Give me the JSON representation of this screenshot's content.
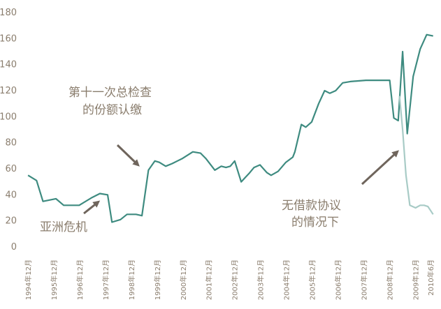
{
  "chart_data": {
    "type": "line",
    "title": "",
    "xlabel": "",
    "ylabel": "",
    "ylim": [
      0,
      180
    ],
    "yticks": [
      0,
      20,
      40,
      60,
      80,
      100,
      120,
      140,
      160,
      180
    ],
    "xlim": [
      1994.917,
      2010.5
    ],
    "x_tick_labels": [
      {
        "x": 1994.917,
        "label": "1994年12月"
      },
      {
        "x": 1995.917,
        "label": "1995年12月"
      },
      {
        "x": 1996.917,
        "label": "1996年12月"
      },
      {
        "x": 1997.917,
        "label": "1997年12月"
      },
      {
        "x": 1998.917,
        "label": "1998年12月"
      },
      {
        "x": 1999.917,
        "label": "1999年12月"
      },
      {
        "x": 2000.917,
        "label": "2000年12月"
      },
      {
        "x": 2001.917,
        "label": "2001年12月"
      },
      {
        "x": 2002.917,
        "label": "2002年12月"
      },
      {
        "x": 2003.917,
        "label": "2003年12月"
      },
      {
        "x": 2004.917,
        "label": "2004年12月"
      },
      {
        "x": 2005.917,
        "label": "2005年12月"
      },
      {
        "x": 2006.917,
        "label": "2006年12月"
      },
      {
        "x": 2007.917,
        "label": "2007年12月"
      },
      {
        "x": 2008.917,
        "label": "2008年12月"
      },
      {
        "x": 2009.917,
        "label": "2009年12月"
      },
      {
        "x": 2010.5,
        "label": "2010年6月"
      }
    ],
    "grid": false,
    "legend": "none",
    "series": [
      {
        "color": "#3e8b80",
        "points": [
          [
            1994.92,
            55
          ],
          [
            1995.25,
            51
          ],
          [
            1995.5,
            35
          ],
          [
            1996.0,
            37
          ],
          [
            1996.3,
            32
          ],
          [
            1996.9,
            32
          ],
          [
            1997.4,
            38
          ],
          [
            1997.7,
            41
          ],
          [
            1998.0,
            40
          ],
          [
            1998.17,
            19
          ],
          [
            1998.5,
            21
          ],
          [
            1998.75,
            25
          ],
          [
            1999.1,
            25
          ],
          [
            1999.33,
            24
          ],
          [
            1999.58,
            59
          ],
          [
            1999.83,
            66
          ],
          [
            2000.0,
            65
          ],
          [
            2000.25,
            62
          ],
          [
            2000.5,
            64
          ],
          [
            2000.9,
            68
          ],
          [
            2001.3,
            73
          ],
          [
            2001.6,
            72
          ],
          [
            2001.8,
            68
          ],
          [
            2002.15,
            59
          ],
          [
            2002.4,
            62
          ],
          [
            2002.58,
            61
          ],
          [
            2002.75,
            62
          ],
          [
            2002.92,
            66
          ],
          [
            2003.17,
            50
          ],
          [
            2003.5,
            57
          ],
          [
            2003.67,
            61
          ],
          [
            2003.9,
            63
          ],
          [
            2004.17,
            57
          ],
          [
            2004.33,
            55
          ],
          [
            2004.6,
            58
          ],
          [
            2004.9,
            65
          ],
          [
            2005.17,
            69
          ],
          [
            2005.25,
            73
          ],
          [
            2005.5,
            94
          ],
          [
            2005.67,
            92
          ],
          [
            2005.9,
            96
          ],
          [
            2006.17,
            110
          ],
          [
            2006.4,
            120
          ],
          [
            2006.6,
            118
          ],
          [
            2006.83,
            120
          ],
          [
            2007.1,
            126
          ],
          [
            2007.4,
            127
          ],
          [
            2008.0,
            128
          ],
          [
            2008.5,
            128
          ],
          [
            2008.92,
            128
          ],
          [
            2009.08,
            99
          ],
          [
            2009.25,
            97
          ],
          [
            2009.42,
            150
          ],
          [
            2009.6,
            87
          ],
          [
            2009.83,
            131
          ],
          [
            2010.1,
            152
          ],
          [
            2010.35,
            163
          ],
          [
            2010.6,
            162
          ]
        ]
      },
      {
        "color": "#a8cbc6",
        "points": [
          [
            2009.3,
            116
          ],
          [
            2009.42,
            90
          ],
          [
            2009.55,
            55
          ],
          [
            2009.7,
            32
          ],
          [
            2009.92,
            30
          ],
          [
            2010.1,
            32
          ],
          [
            2010.25,
            32
          ],
          [
            2010.4,
            31
          ],
          [
            2010.5,
            28
          ],
          [
            2010.6,
            25
          ]
        ]
      }
    ],
    "annotations": [
      {
        "text": [
          "第十一次总检查",
          "的份额认缴"
        ],
        "points_to": [
          1999.33,
          64
        ],
        "arrow_color": "#6f655c"
      },
      {
        "text": [
          "亚洲危机"
        ],
        "points_to": [
          1997.5,
          35
        ],
        "arrow_color": "#6f655c"
      },
      {
        "text": [
          "无借款协议",
          "的情况下"
        ],
        "points_to": [
          2009.33,
          74
        ],
        "arrow_color": "#6f655c"
      }
    ]
  }
}
